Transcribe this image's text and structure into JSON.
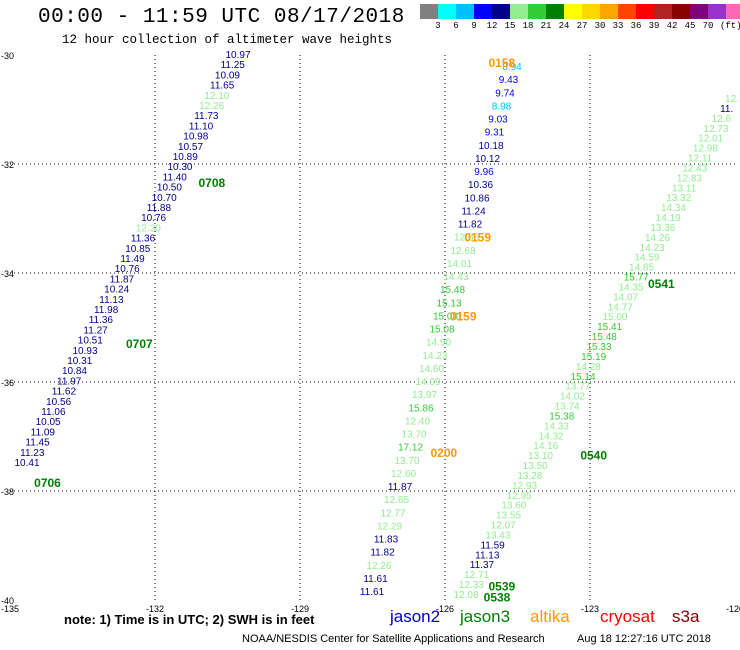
{
  "title": "00:00 - 11:59 UTC 08/17/2018",
  "subtitle": "12 hour collection of altimeter wave heights",
  "legend": {
    "unit": "(ft)",
    "colors": [
      "#808080",
      "#00ffff",
      "#00bfff",
      "#0000ff",
      "#00008b",
      "#90ee90",
      "#32cd32",
      "#008000",
      "#ffff00",
      "#ffd700",
      "#ffa500",
      "#ff4500",
      "#ff0000",
      "#b22222",
      "#8b0000",
      "#800080",
      "#9932cc",
      "#ff69b4",
      "#000000"
    ],
    "ticks": [
      "3",
      "6",
      "9",
      "12",
      "15",
      "18",
      "21",
      "24",
      "27",
      "30",
      "33",
      "36",
      "39",
      "42",
      "45",
      "70"
    ]
  },
  "axes": {
    "lon_labels": [
      "-135",
      "-132",
      "-129",
      "-126",
      "-123",
      "-120"
    ],
    "lat_labels": [
      "-30",
      "-32",
      "-34",
      "-36",
      "-38",
      "-40"
    ]
  },
  "note": "note: 1) Time is in UTC; 2) SWH is in feet",
  "missions": [
    {
      "name": "jason2",
      "color": "#0000cc"
    },
    {
      "name": "jason3",
      "color": "#008000"
    },
    {
      "name": "altika",
      "color": "#ff9900"
    },
    {
      "name": "cryosat",
      "color": "#ff0000"
    },
    {
      "name": "s3a",
      "color": "#8b0000"
    }
  ],
  "credit": "NOAA/NESDIS Center for Satellite Applications and Research",
  "timestamp": "Aug 18 12:27:16 UTC 2018",
  "tracks": [
    {
      "name": "track-1",
      "points": [
        {
          "lon": -131.7,
          "lat": -30.05,
          "v": "10.97",
          "c": "#00008b"
        },
        {
          "lon": -131.7,
          "lat": -30.25,
          "v": "11.25",
          "c": "#00008b"
        },
        {
          "lon": -131.7,
          "lat": -30.45,
          "v": "10.09",
          "c": "#00008b"
        },
        {
          "lon": -131.7,
          "lat": -30.65,
          "v": "11.65",
          "c": "#00008b"
        },
        {
          "lon": -131.7,
          "lat": -30.85,
          "v": "12.10",
          "c": "#90ee90"
        },
        {
          "lon": -131.7,
          "lat": -31.05,
          "v": "12.26",
          "c": "#90ee90"
        },
        {
          "lon": -131.7,
          "lat": -31.25,
          "v": "11.73",
          "c": "#00008b"
        },
        {
          "lon": -131.7,
          "lat": -31.45,
          "v": "11.10",
          "c": "#00008b"
        },
        {
          "lon": -131.7,
          "lat": -31.65,
          "v": "10.98",
          "c": "#00008b"
        },
        {
          "lon": -131.7,
          "lat": -31.85,
          "v": "10.57",
          "c": "#00008b"
        },
        {
          "lon": -131.7,
          "lat": -32.05,
          "v": "10.89",
          "c": "#00008b"
        },
        {
          "lon": -131.7,
          "lat": -32.25,
          "v": "10.30",
          "c": "#00008b"
        },
        {
          "lon": -131.7,
          "lat": -32.45,
          "v": "11.40",
          "c": "#00008b"
        },
        {
          "lon": -131.7,
          "lat": -32.65,
          "v": "10.50",
          "c": "#00008b"
        },
        {
          "lon": -131.7,
          "lat": -32.85,
          "v": "10.70",
          "c": "#00008b"
        },
        {
          "lon": -131.7,
          "lat": -33.05,
          "v": "11.88",
          "c": "#00008b"
        },
        {
          "lon": -131.7,
          "lat": -33.25,
          "v": "10.76",
          "c": "#00008b"
        },
        {
          "lon": -131.7,
          "lat": -33.45,
          "v": "12.30",
          "c": "#90ee90"
        },
        {
          "lon": -131.7,
          "lat": -33.65,
          "v": "11.36",
          "c": "#00008b"
        },
        {
          "lon": -131.7,
          "lat": -33.85,
          "v": "10.85",
          "c": "#00008b"
        },
        {
          "lon": -131.7,
          "lat": -34.05,
          "v": "11.49",
          "c": "#00008b"
        },
        {
          "lon": -131.7,
          "lat": -34.25,
          "v": "10.76",
          "c": "#00008b"
        },
        {
          "lon": -131.7,
          "lat": -34.45,
          "v": "11.87",
          "c": "#00008b"
        },
        {
          "lon": -131.7,
          "lat": -34.65,
          "v": "10.24",
          "c": "#00008b"
        },
        {
          "lon": -131.7,
          "lat": -34.85,
          "v": "11.13",
          "c": "#00008b"
        },
        {
          "lon": -131.7,
          "lat": -35.05,
          "v": "11.98",
          "c": "#00008b"
        },
        {
          "lon": -131.7,
          "lat": -35.25,
          "v": "11.36",
          "c": "#00008b"
        },
        {
          "lon": -131.7,
          "lat": -35.45,
          "v": "11.27",
          "c": "#00008b"
        },
        {
          "lon": -131.7,
          "lat": -35.65,
          "v": "10.51",
          "c": "#00008b"
        },
        {
          "lon": -131.7,
          "lat": -35.85,
          "v": "10.93",
          "c": "#00008b"
        },
        {
          "lon": -131.7,
          "lat": -36.05,
          "v": "10.31",
          "c": "#00008b"
        },
        {
          "lon": -131.7,
          "lat": -36.25,
          "v": "10.84",
          "c": "#00008b"
        },
        {
          "lon": -131.7,
          "lat": -36.45,
          "v": "11.97",
          "c": "#00008b"
        },
        {
          "lon": -131.7,
          "lat": -36.65,
          "v": "11.62",
          "c": "#00008b"
        },
        {
          "lon": -131.7,
          "lat": -36.85,
          "v": "10.56",
          "c": "#00008b"
        },
        {
          "lon": -131.7,
          "lat": -37.05,
          "v": "11.06",
          "c": "#00008b"
        },
        {
          "lon": -131.7,
          "lat": -37.25,
          "v": "10.05",
          "c": "#00008b"
        },
        {
          "lon": -131.7,
          "lat": -37.45,
          "v": "11.09",
          "c": "#00008b"
        },
        {
          "lon": -131.7,
          "lat": -37.65,
          "v": "11.45",
          "c": "#00008b"
        },
        {
          "lon": -131.7,
          "lat": -37.85,
          "v": "11.23",
          "c": "#00008b"
        },
        {
          "lon": -131.7,
          "lat": -38.05,
          "v": "10.41",
          "c": "#00008b"
        }
      ]
    },
    {
      "name": "track-2",
      "points": [
        {
          "lon": -126.4,
          "lat": -30.15,
          "v": "8.94",
          "c": "#00bfff"
        },
        {
          "lon": -126.4,
          "lat": -30.35,
          "v": "9.43",
          "c": "#0000ff"
        },
        {
          "lon": -126.4,
          "lat": -30.55,
          "v": "9.74",
          "c": "#0000ff"
        },
        {
          "lon": -126.4,
          "lat": -30.75,
          "v": "8.98",
          "c": "#00bfff"
        },
        {
          "lon": -126.4,
          "lat": -30.95,
          "v": "9.03",
          "c": "#0000ff"
        },
        {
          "lon": -126.4,
          "lat": -31.15,
          "v": "9.31",
          "c": "#0000ff"
        },
        {
          "lon": -126.4,
          "lat": -31.35,
          "v": "10.18",
          "c": "#00008b"
        },
        {
          "lon": -126.4,
          "lat": -31.55,
          "v": "10.12",
          "c": "#00008b"
        },
        {
          "lon": -126.4,
          "lat": -31.75,
          "v": "9.96",
          "c": "#0000ff"
        },
        {
          "lon": -126.4,
          "lat": -31.95,
          "v": "10.36",
          "c": "#00008b"
        },
        {
          "lon": -126.4,
          "lat": -32.15,
          "v": "10.86",
          "c": "#00008b"
        },
        {
          "lon": -126.4,
          "lat": -32.35,
          "v": "11.24",
          "c": "#00008b"
        },
        {
          "lon": -126.4,
          "lat": -32.55,
          "v": "11.82",
          "c": "#00008b"
        },
        {
          "lon": -126.4,
          "lat": -32.75,
          "v": "12.66",
          "c": "#90ee90"
        },
        {
          "lon": -126.4,
          "lat": -32.95,
          "v": "12.68",
          "c": "#90ee90"
        },
        {
          "lon": -126.4,
          "lat": -33.15,
          "v": "14.01",
          "c": "#90ee90"
        },
        {
          "lon": -126.4,
          "lat": -33.35,
          "v": "14.43",
          "c": "#90ee90"
        },
        {
          "lon": -126.4,
          "lat": -33.55,
          "v": "15.48",
          "c": "#32cd32"
        },
        {
          "lon": -126.4,
          "lat": -33.75,
          "v": "15.13",
          "c": "#32cd32"
        },
        {
          "lon": -126.4,
          "lat": -33.95,
          "v": "15.08",
          "c": "#32cd32"
        },
        {
          "lon": -126.4,
          "lat": -34.15,
          "v": "15.08",
          "c": "#32cd32"
        },
        {
          "lon": -126.4,
          "lat": -34.35,
          "v": "14.90",
          "c": "#90ee90"
        },
        {
          "lon": -126.4,
          "lat": -34.55,
          "v": "14.23",
          "c": "#90ee90"
        },
        {
          "lon": -126.4,
          "lat": -34.75,
          "v": "14.60",
          "c": "#90ee90"
        },
        {
          "lon": -126.4,
          "lat": -34.95,
          "v": "14.09",
          "c": "#90ee90"
        },
        {
          "lon": -126.4,
          "lat": -35.15,
          "v": "13.97",
          "c": "#90ee90"
        },
        {
          "lon": -126.4,
          "lat": -35.35,
          "v": "15.86",
          "c": "#32cd32"
        },
        {
          "lon": -126.4,
          "lat": -35.55,
          "v": "12.40",
          "c": "#90ee90"
        },
        {
          "lon": -126.4,
          "lat": -35.75,
          "v": "13.70",
          "c": "#90ee90"
        },
        {
          "lon": -126.4,
          "lat": -35.95,
          "v": "17.12",
          "c": "#32cd32"
        },
        {
          "lon": -126.4,
          "lat": -36.15,
          "v": "13.70",
          "c": "#90ee90"
        },
        {
          "lon": -126.4,
          "lat": -36.35,
          "v": "12.60",
          "c": "#90ee90"
        },
        {
          "lon": -126.4,
          "lat": -36.55,
          "v": "11.87",
          "c": "#00008b"
        },
        {
          "lon": -126.4,
          "lat": -36.75,
          "v": "12.65",
          "c": "#90ee90"
        },
        {
          "lon": -126.4,
          "lat": -36.95,
          "v": "12.77",
          "c": "#90ee90"
        },
        {
          "lon": -126.4,
          "lat": -37.15,
          "v": "12.29",
          "c": "#90ee90"
        },
        {
          "lon": -126.4,
          "lat": -37.35,
          "v": "11.83",
          "c": "#00008b"
        },
        {
          "lon": -126.4,
          "lat": -37.55,
          "v": "11.82",
          "c": "#00008b"
        },
        {
          "lon": -126.4,
          "lat": -37.75,
          "v": "12.26",
          "c": "#90ee90"
        },
        {
          "lon": -126.4,
          "lat": -37.95,
          "v": "11.61",
          "c": "#00008b"
        },
        {
          "lon": -126.4,
          "lat": -38.15,
          "v": "11.61",
          "c": "#00008b"
        }
      ]
    },
    {
      "name": "track-3",
      "points": [
        {
          "lon": -120.2,
          "lat": -30.05,
          "v": "12.",
          "c": "#90ee90"
        },
        {
          "lon": -120.2,
          "lat": -30.25,
          "v": "11.",
          "c": "#00008b"
        },
        {
          "lon": -120.2,
          "lat": -30.45,
          "v": "12.6",
          "c": "#90ee90"
        },
        {
          "lon": -120.2,
          "lat": -30.65,
          "v": "12.73",
          "c": "#90ee90"
        },
        {
          "lon": -120.2,
          "lat": -30.85,
          "v": "12.01",
          "c": "#90ee90"
        },
        {
          "lon": -120.2,
          "lat": -31.05,
          "v": "12.98",
          "c": "#90ee90"
        },
        {
          "lon": -120.2,
          "lat": -31.25,
          "v": "12.11",
          "c": "#90ee90"
        },
        {
          "lon": -120.2,
          "lat": -31.45,
          "v": "12.43",
          "c": "#90ee90"
        },
        {
          "lon": -120.2,
          "lat": -31.65,
          "v": "12.83",
          "c": "#90ee90"
        },
        {
          "lon": -120.2,
          "lat": -31.85,
          "v": "13.11",
          "c": "#90ee90"
        },
        {
          "lon": -120.2,
          "lat": -32.05,
          "v": "13.32",
          "c": "#90ee90"
        },
        {
          "lon": -120.2,
          "lat": -32.25,
          "v": "14.34",
          "c": "#90ee90"
        },
        {
          "lon": -120.2,
          "lat": -32.45,
          "v": "14.19",
          "c": "#90ee90"
        },
        {
          "lon": -120.2,
          "lat": -32.65,
          "v": "13.36",
          "c": "#90ee90"
        },
        {
          "lon": -120.2,
          "lat": -32.85,
          "v": "14.26",
          "c": "#90ee90"
        },
        {
          "lon": -120.2,
          "lat": -33.05,
          "v": "14.23",
          "c": "#90ee90"
        },
        {
          "lon": -120.2,
          "lat": -33.25,
          "v": "14.59",
          "c": "#90ee90"
        },
        {
          "lon": -120.2,
          "lat": -33.45,
          "v": "14.85",
          "c": "#90ee90"
        },
        {
          "lon": -120.2,
          "lat": -33.65,
          "v": "15.77",
          "c": "#32cd32"
        },
        {
          "lon": -120.2,
          "lat": -33.85,
          "v": "14.35",
          "c": "#90ee90"
        },
        {
          "lon": -120.2,
          "lat": -34.05,
          "v": "14.07",
          "c": "#90ee90"
        },
        {
          "lon": -120.2,
          "lat": -34.25,
          "v": "14.77",
          "c": "#90ee90"
        },
        {
          "lon": -120.2,
          "lat": -34.45,
          "v": "15.00",
          "c": "#90ee90"
        },
        {
          "lon": -120.2,
          "lat": -34.65,
          "v": "15.41",
          "c": "#32cd32"
        },
        {
          "lon": -120.2,
          "lat": -34.85,
          "v": "15.48",
          "c": "#32cd32"
        },
        {
          "lon": -120.2,
          "lat": -35.05,
          "v": "15.33",
          "c": "#32cd32"
        },
        {
          "lon": -120.2,
          "lat": -35.25,
          "v": "15.19",
          "c": "#32cd32"
        },
        {
          "lon": -120.2,
          "lat": -35.45,
          "v": "14.28",
          "c": "#90ee90"
        },
        {
          "lon": -120.2,
          "lat": -35.65,
          "v": "15.14",
          "c": "#32cd32"
        },
        {
          "lon": -120.2,
          "lat": -35.85,
          "v": "13.77",
          "c": "#90ee90"
        },
        {
          "lon": -120.2,
          "lat": -36.05,
          "v": "14.02",
          "c": "#90ee90"
        },
        {
          "lon": -120.2,
          "lat": -36.25,
          "v": "13.74",
          "c": "#90ee90"
        },
        {
          "lon": -120.2,
          "lat": -36.45,
          "v": "15.38",
          "c": "#32cd32"
        },
        {
          "lon": -120.2,
          "lat": -36.65,
          "v": "14.33",
          "c": "#90ee90"
        },
        {
          "lon": -120.2,
          "lat": -36.85,
          "v": "14.32",
          "c": "#90ee90"
        },
        {
          "lon": -120.2,
          "lat": -37.05,
          "v": "14.16",
          "c": "#90ee90"
        },
        {
          "lon": -120.2,
          "lat": -37.25,
          "v": "13.10",
          "c": "#90ee90"
        },
        {
          "lon": -120.2,
          "lat": -37.45,
          "v": "13.50",
          "c": "#90ee90"
        },
        {
          "lon": -120.2,
          "lat": -37.65,
          "v": "13.28",
          "c": "#90ee90"
        },
        {
          "lon": -120.2,
          "lat": -37.85,
          "v": "12.93",
          "c": "#90ee90"
        },
        {
          "lon": -120.2,
          "lat": -38.05,
          "v": "12.95",
          "c": "#90ee90"
        },
        {
          "lon": -120.2,
          "lat": -38.25,
          "v": "13.60",
          "c": "#90ee90"
        },
        {
          "lon": -120.2,
          "lat": -38.45,
          "v": "13.55",
          "c": "#90ee90"
        },
        {
          "lon": -120.2,
          "lat": -38.65,
          "v": "12.07",
          "c": "#90ee90"
        },
        {
          "lon": -120.2,
          "lat": -38.85,
          "v": "13.43",
          "c": "#90ee90"
        },
        {
          "lon": -120.2,
          "lat": -39.05,
          "v": "11.59",
          "c": "#00008b"
        },
        {
          "lon": -120.2,
          "lat": -39.25,
          "v": "11.13",
          "c": "#00008b"
        },
        {
          "lon": -120.2,
          "lat": -39.45,
          "v": "11.37",
          "c": "#00008b"
        },
        {
          "lon": -120.2,
          "lat": -39.65,
          "v": "12.71",
          "c": "#90ee90"
        },
        {
          "lon": -120.2,
          "lat": -39.85,
          "v": "12.33",
          "c": "#90ee90"
        },
        {
          "lon": -120.2,
          "lat": -40.0,
          "v": "12.08",
          "c": "#90ee90"
        }
      ]
    }
  ],
  "pass_labels": [
    {
      "text": "0158",
      "color": "#ff9900",
      "lon": -125.1,
      "lat": -30.15
    },
    {
      "text": "0708",
      "color": "#008000",
      "lon": -131.1,
      "lat": -32.35
    },
    {
      "text": "0159",
      "color": "#ff9900",
      "lon": -125.6,
      "lat": -33.35
    },
    {
      "text": "0541",
      "color": "#008000",
      "lon": -121.8,
      "lat": -34.2
    },
    {
      "text": "0159",
      "color": "#ff9900",
      "lon": -125.9,
      "lat": -34.8
    },
    {
      "text": "0707",
      "color": "#008000",
      "lon": -132.6,
      "lat": -35.3
    },
    {
      "text": "0200",
      "color": "#ff9900",
      "lon": -126.3,
      "lat": -37.3
    },
    {
      "text": "0540",
      "color": "#008000",
      "lon": -123.2,
      "lat": -37.35
    },
    {
      "text": "0706",
      "color": "#008000",
      "lon": -134.5,
      "lat": -37.85
    },
    {
      "text": "0539",
      "color": "#008000",
      "lon": -125.1,
      "lat": -39.75
    },
    {
      "text": "0538",
      "color": "#008000",
      "lon": -125.2,
      "lat": -39.95
    }
  ]
}
